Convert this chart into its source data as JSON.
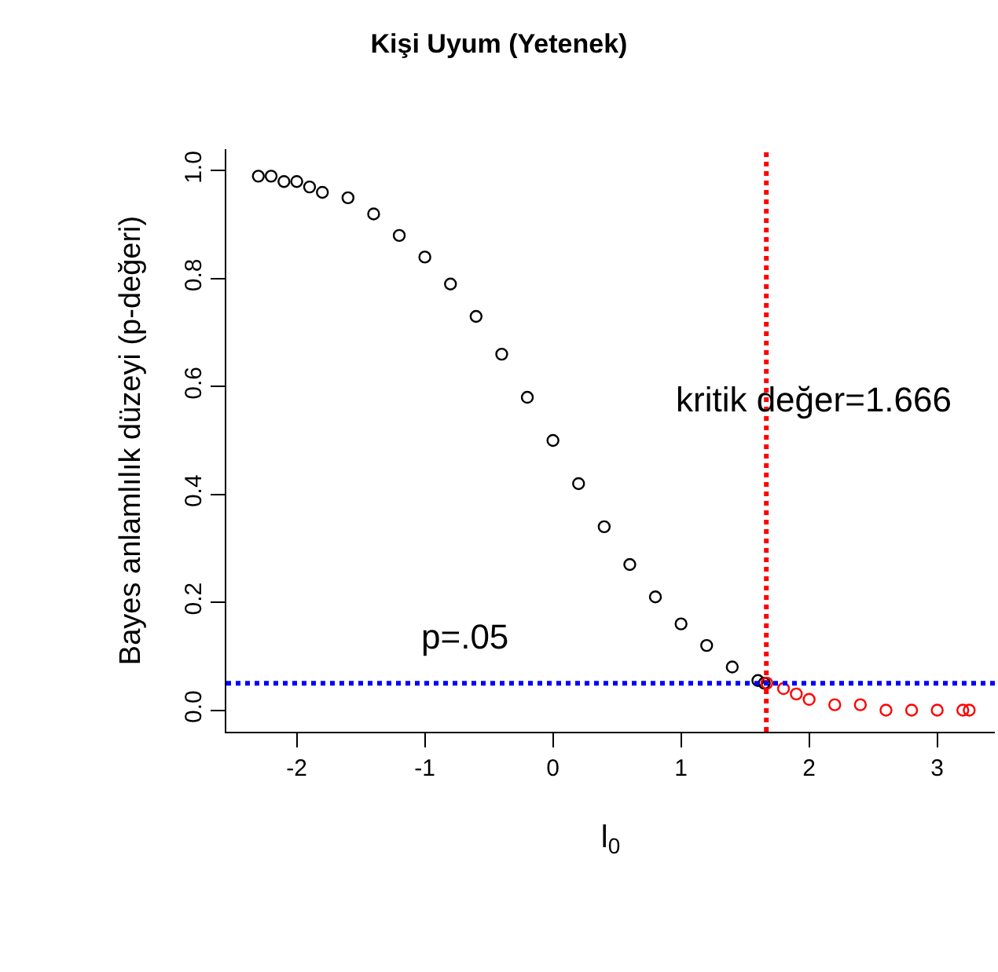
{
  "chart_data": {
    "type": "scatter",
    "title": "Kişi Uyum (Yetenek)",
    "xlabel": "l$_{0}$",
    "ylabel": "Bayes anlamlılık düzeyi (p-değeri)",
    "series": [
      {
        "color": "#000000",
        "x": [
          -2.3,
          -2.2,
          -2.1,
          -2.0,
          -1.9,
          -1.8,
          -1.6,
          -1.4,
          -1.2,
          -1.0,
          -0.8,
          -0.6,
          -0.4,
          -0.2,
          0,
          0.2,
          0.4,
          0.6,
          0.8,
          1.0,
          1.2,
          1.4,
          1.6,
          1.65
        ],
        "values": [
          0.99,
          0.99,
          0.98,
          0.98,
          0.97,
          0.96,
          0.95,
          0.92,
          0.88,
          0.84,
          0.79,
          0.73,
          0.66,
          0.58,
          0.5,
          0.42,
          0.34,
          0.27,
          0.21,
          0.16,
          0.12,
          0.08,
          0.055,
          0.05
        ]
      },
      {
        "color": "#ff0000",
        "x": [
          1.67,
          1.8,
          1.9,
          2.0,
          2.2,
          2.4,
          2.6,
          2.8,
          3.0,
          3.2,
          3.25
        ],
        "values": [
          0.05,
          0.04,
          0.03,
          0.02,
          0.01,
          0.01,
          0.0,
          0.0,
          0.0,
          0.0,
          0.0
        ]
      }
    ],
    "marker": "circle",
    "xlim": [
      -2.55,
      3.45
    ],
    "xticks": [
      -2,
      -1,
      0,
      1,
      2,
      3
    ],
    "ylim": [
      -0.04,
      1.04
    ],
    "yticks": [
      {
        "value": 0,
        "label": "0.0"
      },
      0.2,
      0.4,
      0.6,
      0.8,
      {
        "value": 1,
        "label": "1.0"
      }
    ],
    "ref_lines": [
      {
        "axis": "x",
        "value": 1.666,
        "label": "kritik değer=1.666",
        "color": "#ff0000",
        "line_style": "dotted"
      },
      {
        "axis": "y",
        "value": 0.05,
        "label": "p=.05",
        "color": "#0000ff",
        "line_style": "dotted"
      }
    ]
  }
}
